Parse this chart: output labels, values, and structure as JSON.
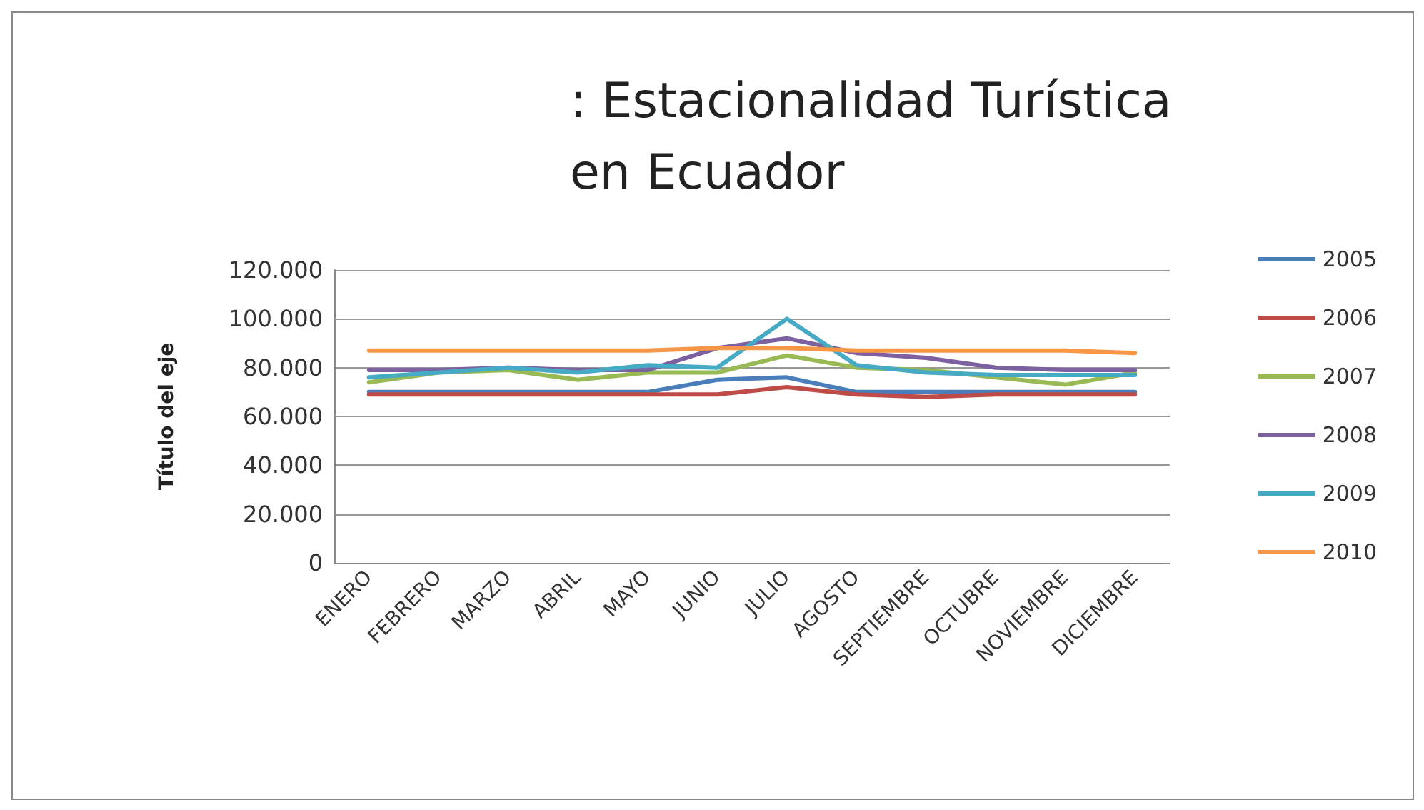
{
  "chart_data": {
    "type": "line",
    "title": ": Estacionalidad Turística\nen Ecuador",
    "ylabel": "Título del eje",
    "categories": [
      "ENERO",
      "FEBRERO",
      "MARZO",
      "ABRIL",
      "MAYO",
      "JUNIO",
      "JULIO",
      "AGOSTO",
      "SEPTIEMBRE",
      "OCTUBRE",
      "NOVIEMBRE",
      "DICIEMBRE"
    ],
    "series": [
      {
        "name": "2005",
        "color": "#4a7ebb",
        "values": [
          70000,
          70000,
          70000,
          70000,
          70000,
          75000,
          76000,
          70000,
          70000,
          70000,
          70000,
          70000
        ]
      },
      {
        "name": "2006",
        "color": "#be4b48",
        "values": [
          69000,
          69000,
          69000,
          69000,
          69000,
          69000,
          72000,
          69000,
          68000,
          69000,
          69000,
          69000
        ]
      },
      {
        "name": "2007",
        "color": "#98b954",
        "values": [
          74000,
          78000,
          79000,
          75000,
          78000,
          78000,
          85000,
          80000,
          79000,
          76000,
          73000,
          78000
        ]
      },
      {
        "name": "2008",
        "color": "#7d60a0",
        "values": [
          79000,
          79000,
          80000,
          79000,
          79000,
          88000,
          92000,
          86000,
          84000,
          80000,
          79000,
          79000
        ]
      },
      {
        "name": "2009",
        "color": "#46aac5",
        "values": [
          76000,
          78000,
          80000,
          78000,
          81000,
          80000,
          100000,
          81000,
          78000,
          77000,
          77000,
          77000
        ]
      },
      {
        "name": "2010",
        "color": "#f79646",
        "values": [
          87000,
          87000,
          87000,
          87000,
          87000,
          88000,
          88000,
          87000,
          87000,
          87000,
          87000,
          86000
        ]
      }
    ],
    "ylim": [
      0,
      120000
    ],
    "yticks": [
      0,
      {
        "value": 20000,
        "label": "20.000"
      },
      {
        "value": 40000,
        "label": "40.000"
      },
      {
        "value": 60000,
        "label": "60.000"
      },
      {
        "value": 80000,
        "label": "80.000"
      },
      {
        "value": 100000,
        "label": "100.000"
      },
      {
        "value": 120000,
        "label": "120.000"
      }
    ],
    "grid": "y",
    "legend": "right",
    "marker": "none",
    "line_style": "solid"
  }
}
